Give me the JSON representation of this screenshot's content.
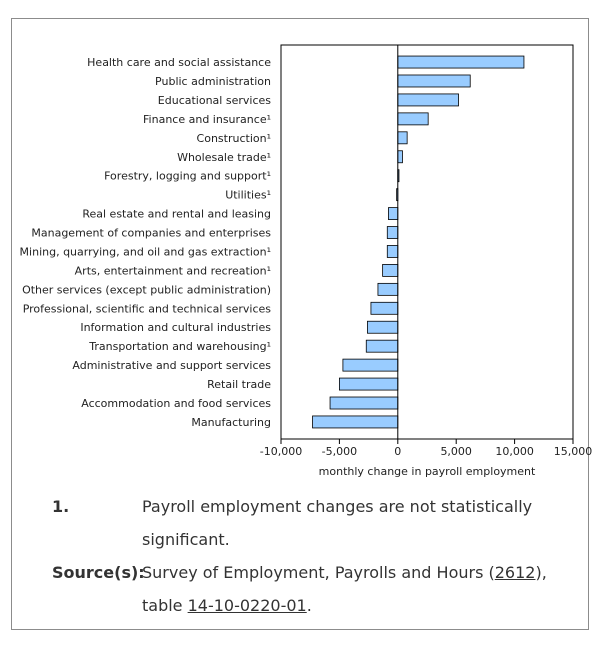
{
  "chart_data": {
    "type": "bar",
    "orientation": "horizontal",
    "categories": [
      "Health care and social assistance",
      "Public administration",
      "Educational services",
      "Finance and insurance¹",
      "Construction¹",
      "Wholesale trade¹",
      "Forestry, logging and support¹",
      "Utilities¹",
      "Real estate and rental and leasing",
      "Management of companies and enterprises",
      "Mining, quarrying, and oil and gas extraction¹",
      "Arts, entertainment and recreation¹",
      "Other services (except public administration)",
      "Professional, scientific and technical services",
      "Information and cultural industries",
      "Transportation and warehousing¹",
      "Administrative and support services",
      "Retail trade",
      "Accommodation and food services",
      "Manufacturing"
    ],
    "values": [
      10800,
      6200,
      5200,
      2600,
      800,
      400,
      100,
      -100,
      -800,
      -900,
      -900,
      -1300,
      -1700,
      -2300,
      -2600,
      -2700,
      -4700,
      -5000,
      -5800,
      -7300
    ],
    "xlabel": "monthly change in payroll employment",
    "ylabel": "",
    "xlim": [
      -10000,
      15000
    ],
    "xticks": [
      -10000,
      -5000,
      0,
      5000,
      10000,
      15000
    ],
    "xtick_labels": [
      "-10,000",
      "-5,000",
      "0",
      "5,000",
      "10,000",
      "15,000"
    ],
    "bar_color": "#99ccff",
    "bar_edge_color": "#000000",
    "grid": false
  },
  "notes": {
    "footnote_key": "1.",
    "footnote_text": "Payroll employment changes are not statistically significant.",
    "source_key": "Source(s):",
    "source_text_before": "Survey of Employment, Payrolls and Hours (",
    "source_link1": "2612",
    "source_text_mid": "), table ",
    "source_link2": "14-10-0220-01",
    "source_text_after": "."
  }
}
